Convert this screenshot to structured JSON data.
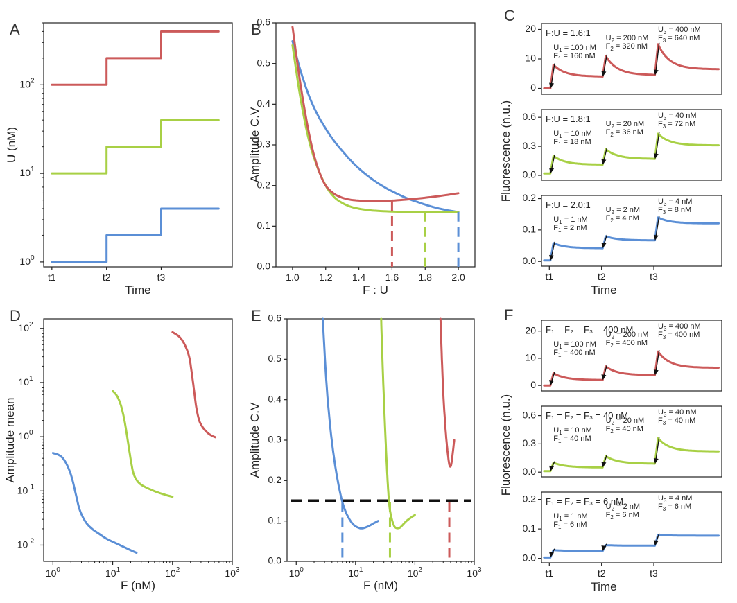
{
  "colors": {
    "red": "#cc5a5a",
    "green": "#a8d045",
    "blue": "#5b8fd6",
    "black": "#111111"
  },
  "chart_data": [
    {
      "panel": "A",
      "type": "line",
      "xlabel": "Time",
      "ylabel": "U (nM)",
      "yscale": "log",
      "ylim": [
        0.88,
        500
      ],
      "xticks": [
        "t1",
        "t2",
        "t3"
      ],
      "yticks": [
        {
          "v": 1,
          "b": "10",
          "e": "0"
        },
        {
          "v": 10,
          "b": "10",
          "e": "1"
        },
        {
          "v": 100,
          "b": "10",
          "e": "2"
        }
      ],
      "series": [
        {
          "color": "red",
          "x": [
            0,
            1,
            1,
            2,
            2,
            3.05
          ],
          "y": [
            100,
            100,
            200,
            200,
            400,
            400
          ]
        },
        {
          "color": "green",
          "x": [
            0,
            1,
            1,
            2,
            2,
            3.05
          ],
          "y": [
            10,
            10,
            20,
            20,
            40,
            40
          ]
        },
        {
          "color": "blue",
          "x": [
            0,
            1,
            1,
            2,
            2,
            3.05
          ],
          "y": [
            1,
            1,
            2,
            2,
            4,
            4
          ]
        }
      ]
    },
    {
      "panel": "B",
      "type": "line",
      "xlabel": "F : U",
      "ylabel": "Amplitude C.V",
      "xlim": [
        0.9,
        2.1
      ],
      "ylim": [
        0,
        0.6
      ],
      "xticks": [
        "1.0",
        "1.2",
        "1.4",
        "1.6",
        "1.8",
        "2.0"
      ],
      "yticks": [
        "0.0",
        "0.1",
        "0.2",
        "0.3",
        "0.4",
        "0.5",
        "0.6"
      ],
      "series": [
        {
          "color": "blue",
          "x": [
            1.0,
            1.05,
            1.1,
            1.15,
            1.2,
            1.25,
            1.3,
            1.35,
            1.4,
            1.45,
            1.5,
            1.55,
            1.6,
            1.65,
            1.7,
            1.75,
            1.8,
            1.85,
            1.9,
            1.95,
            2.0
          ],
          "y": [
            0.555,
            0.48,
            0.42,
            0.375,
            0.34,
            0.31,
            0.285,
            0.262,
            0.242,
            0.225,
            0.21,
            0.197,
            0.186,
            0.176,
            0.167,
            0.16,
            0.153,
            0.147,
            0.142,
            0.138,
            0.135
          ]
        },
        {
          "color": "green",
          "x": [
            1.0,
            1.05,
            1.1,
            1.15,
            1.2,
            1.25,
            1.3,
            1.35,
            1.4,
            1.45,
            1.5,
            1.6,
            1.7,
            1.8,
            1.9,
            2.0
          ],
          "y": [
            0.545,
            0.41,
            0.31,
            0.245,
            0.2,
            0.172,
            0.157,
            0.148,
            0.143,
            0.14,
            0.138,
            0.136,
            0.135,
            0.135,
            0.135,
            0.135
          ]
        },
        {
          "color": "red",
          "x": [
            1.0,
            1.04,
            1.08,
            1.12,
            1.16,
            1.2,
            1.25,
            1.3,
            1.35,
            1.4,
            1.45,
            1.5,
            1.6,
            1.7,
            1.8,
            1.9,
            2.0
          ],
          "y": [
            0.59,
            0.47,
            0.37,
            0.29,
            0.235,
            0.2,
            0.18,
            0.17,
            0.165,
            0.163,
            0.162,
            0.162,
            0.163,
            0.166,
            0.17,
            0.175,
            0.181
          ]
        }
      ],
      "markers": [
        {
          "color": "red",
          "x": 1.6,
          "y": 0.162
        },
        {
          "color": "green",
          "x": 1.8,
          "y": 0.135
        },
        {
          "color": "blue",
          "x": 2.0,
          "y": 0.135
        }
      ]
    },
    {
      "panel": "C",
      "type": "line",
      "xlabel": "Time",
      "ylabel": "Fluorescence (n.u.)",
      "xticks": [
        "t1",
        "t2",
        "t3"
      ],
      "subplots": [
        {
          "color": "red",
          "title": "F:U = 1.6:1",
          "ylim": [
            -2,
            22
          ],
          "yticks": [
            "0",
            "10",
            "20"
          ],
          "ytick_values": [
            0,
            10,
            20
          ],
          "base": 0,
          "steps": [
            {
              "peak": 8,
              "settle": 4
            },
            {
              "peak": 11,
              "settle": 4.5
            },
            {
              "peak": 15,
              "settle": 6.5
            }
          ],
          "labels": [
            [
              "100 nM",
              "160 nM"
            ],
            [
              "200 nM",
              "320 nM"
            ],
            [
              "400 nM",
              "640 nM"
            ]
          ]
        },
        {
          "color": "green",
          "title": "F:U = 1.8:1",
          "ylim": [
            -0.05,
            0.68
          ],
          "yticks": [
            "0.0",
            "0.3",
            "0.6"
          ],
          "ytick_values": [
            0,
            0.3,
            0.6
          ],
          "base": 0.02,
          "steps": [
            {
              "peak": 0.2,
              "settle": 0.11
            },
            {
              "peak": 0.27,
              "settle": 0.17
            },
            {
              "peak": 0.43,
              "settle": 0.31
            }
          ],
          "labels": [
            [
              "10 nM",
              "18 nM"
            ],
            [
              "20 nM",
              "36 nM"
            ],
            [
              "40 nM",
              "72 nM"
            ]
          ]
        },
        {
          "color": "blue",
          "title": "F:U = 2.0:1",
          "ylim": [
            -0.015,
            0.21
          ],
          "yticks": [
            "0.0",
            "0.1",
            "0.2"
          ],
          "ytick_values": [
            0,
            0.1,
            0.2
          ],
          "base": 0.003,
          "steps": [
            {
              "peak": 0.058,
              "settle": 0.042
            },
            {
              "peak": 0.08,
              "settle": 0.067
            },
            {
              "peak": 0.14,
              "settle": 0.121
            }
          ],
          "labels": [
            [
              "1 nM",
              "2 nM"
            ],
            [
              "2 nM",
              "4 nM"
            ],
            [
              "4 nM",
              "8 nM"
            ]
          ]
        }
      ]
    },
    {
      "panel": "D",
      "type": "line",
      "xlabel": "F (nM)",
      "ylabel": "Amplitude mean",
      "xscale": "log",
      "yscale": "log",
      "xlim": [
        0.7,
        1000
      ],
      "ylim": [
        0.005,
        150
      ],
      "xticks": [
        {
          "v": 1,
          "b": "10",
          "e": "0"
        },
        {
          "v": 10,
          "b": "10",
          "e": "1"
        },
        {
          "v": 100,
          "b": "10",
          "e": "2"
        },
        {
          "v": 1000,
          "b": "10",
          "e": "3"
        }
      ],
      "yticks": [
        {
          "v": 0.01,
          "b": "10",
          "e": "-2"
        },
        {
          "v": 0.1,
          "b": "10",
          "e": "-1"
        },
        {
          "v": 1,
          "b": "10",
          "e": "0"
        },
        {
          "v": 10,
          "b": "10",
          "e": "1"
        },
        {
          "v": 100,
          "b": "10",
          "e": "2"
        }
      ],
      "series": [
        {
          "color": "blue",
          "x": [
            1.0,
            1.3,
            1.6,
            2.0,
            2.4,
            2.8,
            3.5,
            4.5,
            6,
            8,
            12,
            18,
            25
          ],
          "y": [
            0.5,
            0.45,
            0.35,
            0.2,
            0.09,
            0.045,
            0.027,
            0.02,
            0.016,
            0.013,
            0.0105,
            0.0085,
            0.0072
          ]
        },
        {
          "color": "green",
          "x": [
            10,
            12,
            14,
            16,
            18,
            20,
            22,
            25,
            30,
            40,
            55,
            75,
            100
          ],
          "y": [
            7,
            5.5,
            3.5,
            1.8,
            0.8,
            0.38,
            0.22,
            0.16,
            0.13,
            0.11,
            0.095,
            0.085,
            0.078
          ]
        },
        {
          "color": "red",
          "x": [
            100,
            130,
            160,
            190,
            210,
            230,
            250,
            280,
            320,
            380,
            450,
            520
          ],
          "y": [
            85,
            70,
            50,
            30,
            15,
            7,
            3.5,
            2.0,
            1.5,
            1.2,
            1.05,
            0.98
          ]
        }
      ]
    },
    {
      "panel": "E",
      "type": "line",
      "xlabel": "F (nM)",
      "ylabel": "Amplitude C.V",
      "xscale": "log",
      "xlim": [
        0.7,
        1000
      ],
      "ylim": [
        0,
        0.6
      ],
      "xticks": [
        {
          "v": 1,
          "b": "10",
          "e": "0"
        },
        {
          "v": 10,
          "b": "10",
          "e": "1"
        },
        {
          "v": 100,
          "b": "10",
          "e": "2"
        },
        {
          "v": 1000,
          "b": "10",
          "e": "3"
        }
      ],
      "yticks": [
        "0.0",
        "0.1",
        "0.2",
        "0.3",
        "0.4",
        "0.5",
        "0.6"
      ],
      "threshold": 0.15,
      "series": [
        {
          "color": "blue",
          "x": [
            2.8,
            3.2,
            3.7,
            4.3,
            5.0,
            5.8,
            6.6,
            7.5,
            8.7,
            10,
            12,
            14,
            17,
            20,
            24
          ],
          "y": [
            0.6,
            0.45,
            0.34,
            0.26,
            0.2,
            0.155,
            0.128,
            0.11,
            0.095,
            0.087,
            0.082,
            0.083,
            0.088,
            0.094,
            0.1
          ]
        },
        {
          "color": "green",
          "x": [
            27,
            29,
            31,
            33,
            35,
            37,
            40,
            44,
            48,
            55,
            62,
            72,
            85,
            100
          ],
          "y": [
            0.6,
            0.46,
            0.35,
            0.26,
            0.19,
            0.14,
            0.11,
            0.09,
            0.083,
            0.083,
            0.09,
            0.1,
            0.108,
            0.115
          ]
        },
        {
          "color": "red",
          "x": [
            270,
            285,
            300,
            320,
            340,
            360,
            380,
            400,
            420,
            440,
            460
          ],
          "y": [
            0.6,
            0.5,
            0.42,
            0.35,
            0.3,
            0.265,
            0.24,
            0.235,
            0.25,
            0.275,
            0.3
          ]
        }
      ],
      "markers": [
        {
          "color": "blue",
          "x": 6
        },
        {
          "color": "green",
          "x": 38
        },
        {
          "color": "red",
          "x": 380
        }
      ]
    },
    {
      "panel": "F",
      "type": "line",
      "xlabel": "Time",
      "ylabel": "Fluorescence (n.u.)",
      "xticks": [
        "t1",
        "t2",
        "t3"
      ],
      "subplots": [
        {
          "color": "red",
          "title": "F₁ = F₂ = F₃ = 400 nM",
          "ylim": [
            -2,
            24
          ],
          "yticks": [
            "0",
            "10",
            "20"
          ],
          "ytick_values": [
            0,
            10,
            20
          ],
          "base": 0,
          "steps": [
            {
              "peak": 4.5,
              "settle": 2
            },
            {
              "peak": 7,
              "settle": 3.8
            },
            {
              "peak": 12.5,
              "settle": 6.5
            }
          ],
          "labels": [
            [
              "100 nM",
              "400 nM"
            ],
            [
              "200 nM",
              "400 nM"
            ],
            [
              "400 nM",
              "400 nM"
            ]
          ]
        },
        {
          "color": "green",
          "title": "F₁ = F₂ = F₃ = 40 nM",
          "ylim": [
            -0.05,
            0.7
          ],
          "yticks": [
            "0.0",
            "0.3",
            "0.6"
          ],
          "ytick_values": [
            0,
            0.3,
            0.6
          ],
          "base": 0.01,
          "steps": [
            {
              "peak": 0.1,
              "settle": 0.05
            },
            {
              "peak": 0.17,
              "settle": 0.09
            },
            {
              "peak": 0.36,
              "settle": 0.22
            }
          ],
          "labels": [
            [
              "10 nM",
              "40 nM"
            ],
            [
              "20 nM",
              "40 nM"
            ],
            [
              "40 nM",
              "40 nM"
            ]
          ]
        },
        {
          "color": "blue",
          "title": "F₁ = F₂ = F₃ = 6 nM",
          "ylim": [
            -0.015,
            0.225
          ],
          "yticks": [
            "0.0",
            "0.1",
            "0.2"
          ],
          "ytick_values": [
            0,
            0.1,
            0.2
          ],
          "base": 0.003,
          "steps": [
            {
              "peak": 0.028,
              "settle": 0.025
            },
            {
              "peak": 0.045,
              "settle": 0.043
            },
            {
              "peak": 0.08,
              "settle": 0.077
            }
          ],
          "labels": [
            [
              "1 nM",
              "6 nM"
            ],
            [
              "2 nM",
              "6 nM"
            ],
            [
              "4 nM",
              "6 nM"
            ]
          ]
        }
      ]
    }
  ]
}
